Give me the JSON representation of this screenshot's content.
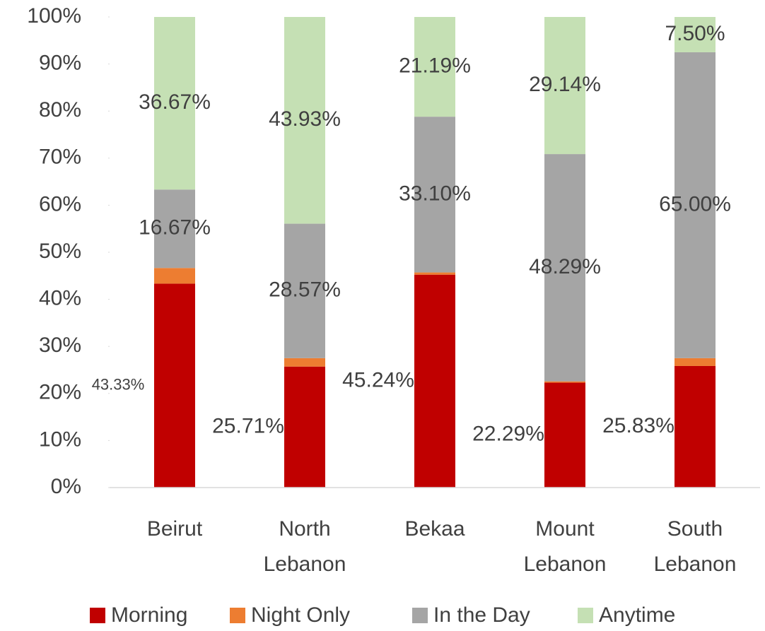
{
  "chart_data": {
    "type": "stacked_bar",
    "categories": [
      "Beirut",
      "North Lebanon",
      "Bekaa",
      "Mount Lebanon",
      "South Lebanon"
    ],
    "series": [
      {
        "name": "Morning",
        "color": "#c00000",
        "values": [
          43.33,
          25.71,
          45.24,
          22.29,
          25.83
        ],
        "value_labels": [
          "43.33%",
          "25.71%",
          "45.24%",
          "22.29%",
          "25.83%"
        ]
      },
      {
        "name": "Night Only",
        "color": "#ed7d31",
        "values": [
          3.33,
          1.79,
          0.47,
          0.28,
          1.67
        ]
      },
      {
        "name": "In the Day",
        "color": "#a5a5a5",
        "values": [
          16.67,
          28.57,
          33.1,
          48.29,
          65.0
        ],
        "value_labels": [
          "16.67%",
          "28.57%",
          "33.10%",
          "48.29%",
          "65.00%"
        ]
      },
      {
        "name": "Anytime",
        "color": "#c5e0b4",
        "values": [
          36.67,
          43.93,
          21.19,
          29.14,
          7.5
        ],
        "value_labels": [
          "36.67%",
          "43.93%",
          "21.19%",
          "29.14%",
          "7.50%"
        ]
      }
    ],
    "ylim": [
      0,
      100
    ],
    "yticks": [
      {
        "value": 0,
        "label": "0%"
      },
      {
        "value": 10,
        "label": "10%"
      },
      {
        "value": 20,
        "label": "20%"
      },
      {
        "value": 30,
        "label": "30%"
      },
      {
        "value": 40,
        "label": "40%"
      },
      {
        "value": 50,
        "label": "50%"
      },
      {
        "value": 60,
        "label": "60%"
      },
      {
        "value": 70,
        "label": "70%"
      },
      {
        "value": 80,
        "label": "80%"
      },
      {
        "value": 90,
        "label": "90%"
      },
      {
        "value": 100,
        "label": "100%"
      }
    ],
    "grid": false,
    "legend": "bottom"
  }
}
